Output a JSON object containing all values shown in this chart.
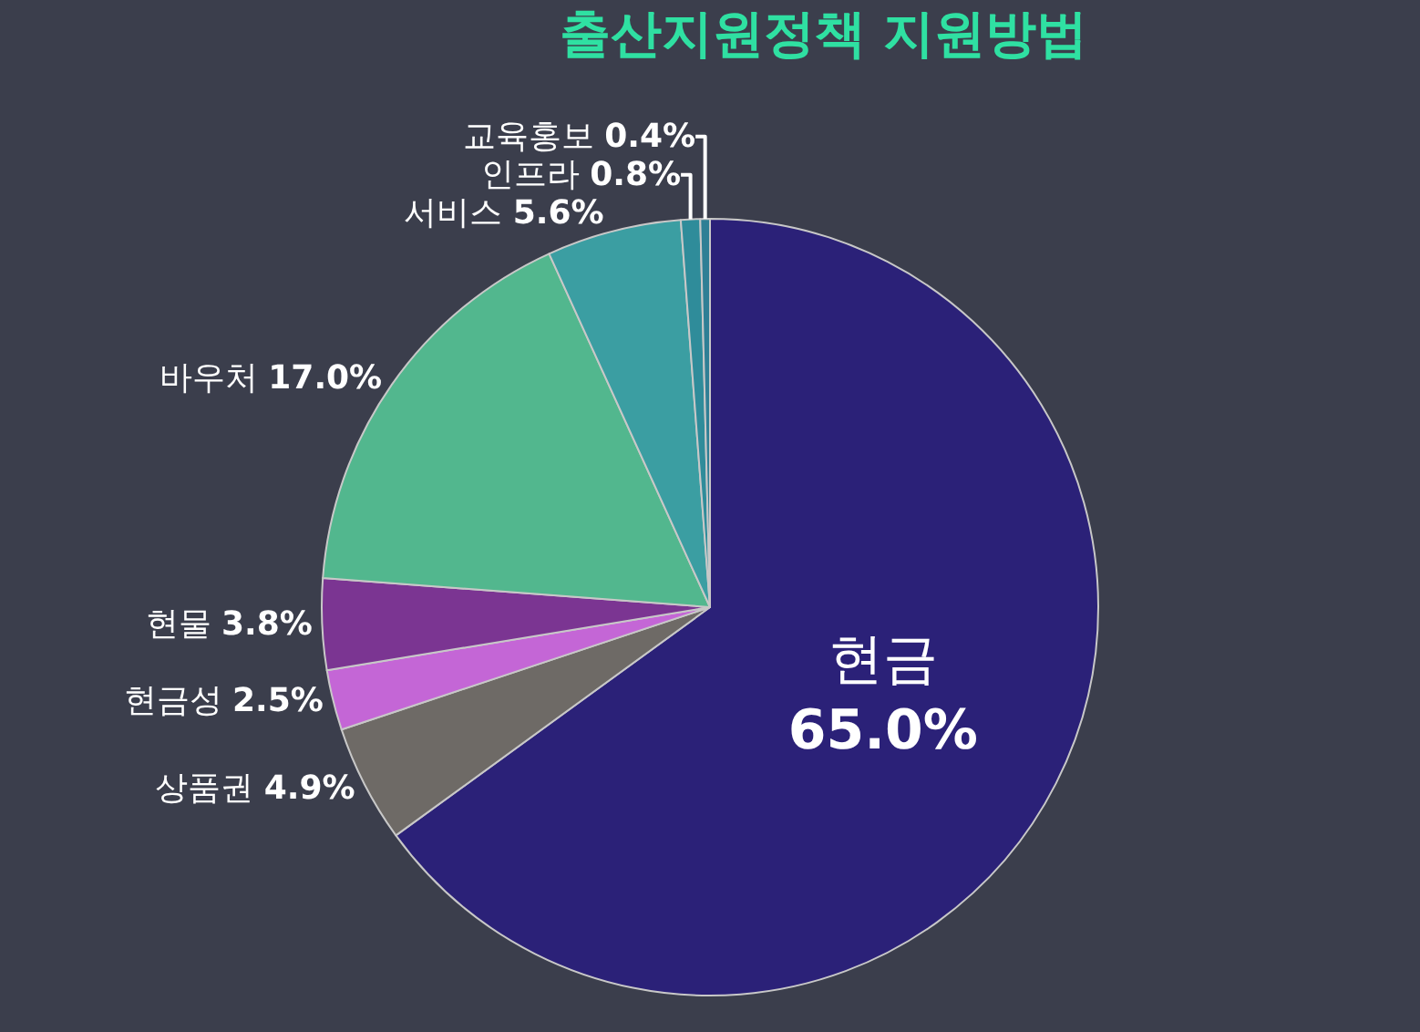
{
  "chart_data": {
    "type": "pie",
    "title": "출산지원정책 지원방법",
    "categories": [
      "현금",
      "상품권",
      "현금성",
      "현물",
      "바우처",
      "서비스",
      "인프라",
      "교육홍보"
    ],
    "values": [
      65.0,
      4.9,
      2.5,
      3.8,
      17.0,
      5.6,
      0.8,
      0.4
    ],
    "value_labels": [
      "65.0%",
      "4.9%",
      "2.5%",
      "3.8%",
      "17.0%",
      "5.6%",
      "0.8%",
      "0.4%"
    ],
    "colors": [
      "#2b2178",
      "#6e6a66",
      "#c466d6",
      "#7b3592",
      "#52b78e",
      "#3b9ea2",
      "#2f8c9a",
      "#2f7f95"
    ],
    "legend": false
  }
}
